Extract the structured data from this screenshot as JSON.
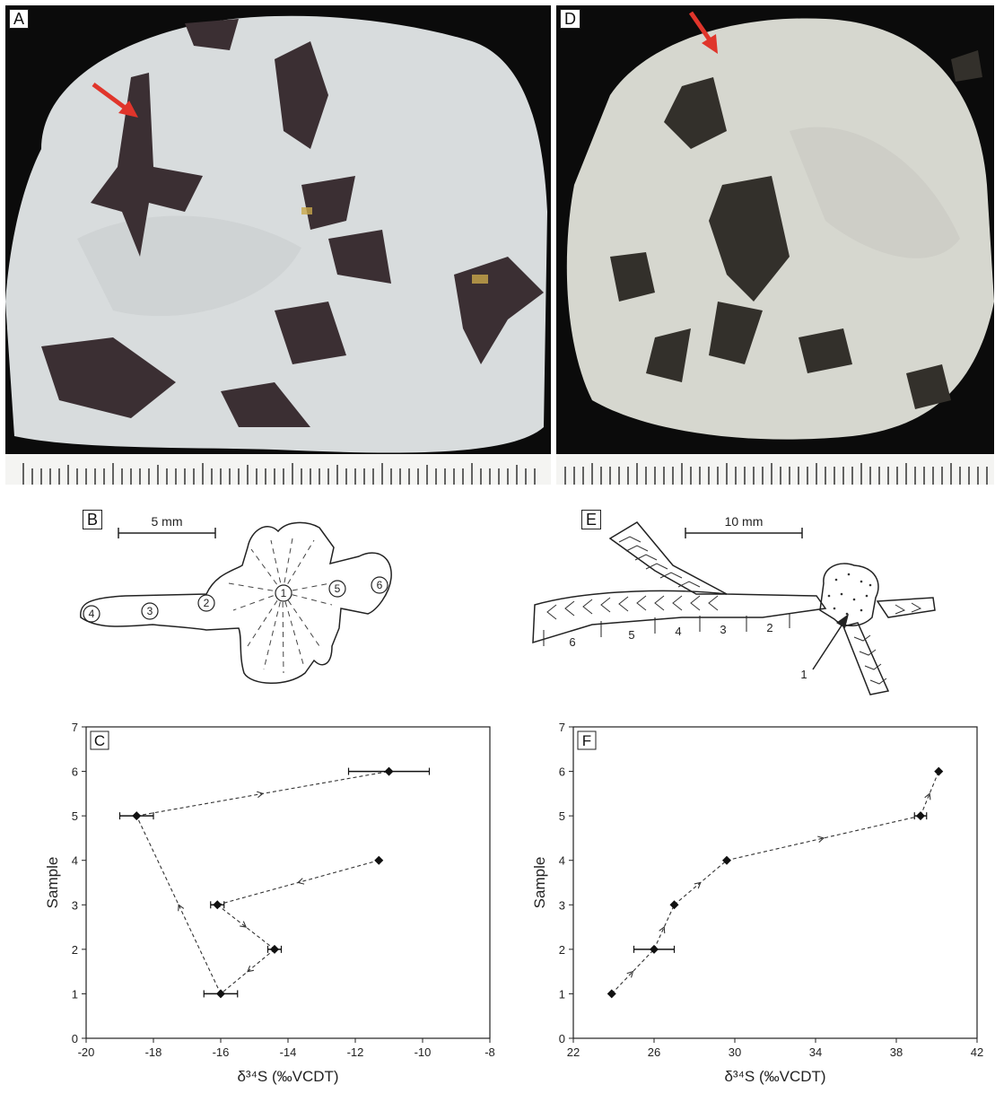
{
  "figure": {
    "panels": {
      "A": {
        "label": "A"
      },
      "D": {
        "label": "D"
      },
      "B": {
        "label": "B",
        "scale_label": "5 mm",
        "zone_labels": [
          "1",
          "2",
          "3",
          "4",
          "5",
          "6"
        ]
      },
      "E": {
        "label": "E",
        "scale_label": "10 mm",
        "zone_labels": [
          "1",
          "2",
          "3",
          "4",
          "5",
          "6"
        ]
      }
    },
    "colors": {
      "arrow": "#e0352b",
      "rock": "#d9dcdc",
      "crystal": "#3a3032",
      "background": "#0b0b0b"
    }
  },
  "chart_data": [
    {
      "panel_label": "C",
      "type": "scatter",
      "xlabel": "δ³⁴S (‰VCDT)",
      "ylabel": "Sample",
      "xlim": [
        -20,
        -8
      ],
      "ylim": [
        0,
        7
      ],
      "xticks": [
        -20,
        -18,
        -16,
        -14,
        -12,
        -10,
        -8
      ],
      "xtick_labels": [
        "-20",
        "-18",
        "-16",
        "-14",
        "-12",
        "-10",
        "-8"
      ],
      "yticks": [
        0,
        1,
        2,
        3,
        4,
        5,
        6,
        7
      ],
      "ytick_labels": [
        "0",
        "1",
        "2",
        "3",
        "4",
        "5",
        "6",
        "7"
      ],
      "points": [
        {
          "sample": 1,
          "x": -16.0,
          "err": 0.5
        },
        {
          "sample": 2,
          "x": -14.4,
          "err": 0.2
        },
        {
          "sample": 3,
          "x": -16.1,
          "err": 0.2
        },
        {
          "sample": 4,
          "x": -11.3,
          "err": 0
        },
        {
          "sample": 5,
          "x": -18.5,
          "err": 0.5
        },
        {
          "sample": 6,
          "x": -11.0,
          "err": 1.2
        }
      ],
      "path_order": [
        4,
        3,
        2,
        1,
        5,
        6
      ],
      "grid": false
    },
    {
      "panel_label": "F",
      "type": "scatter",
      "xlabel": "δ³⁴S (‰VCDT)",
      "ylabel": "Sample",
      "xlim": [
        22,
        42
      ],
      "ylim": [
        0,
        7
      ],
      "xticks": [
        22,
        26,
        30,
        34,
        38,
        42
      ],
      "xtick_labels": [
        "22",
        "26",
        "30",
        "34",
        "38",
        "42"
      ],
      "yticks": [
        0,
        1,
        2,
        3,
        4,
        5,
        6,
        7
      ],
      "ytick_labels": [
        "0",
        "1",
        "2",
        "3",
        "4",
        "5",
        "6",
        "7"
      ],
      "points": [
        {
          "sample": 1,
          "x": 23.9,
          "err": 0
        },
        {
          "sample": 2,
          "x": 26.0,
          "err": 1.0
        },
        {
          "sample": 3,
          "x": 27.0,
          "err": 0
        },
        {
          "sample": 4,
          "x": 29.6,
          "err": 0
        },
        {
          "sample": 5,
          "x": 39.2,
          "err": 0.3
        },
        {
          "sample": 6,
          "x": 40.1,
          "err": 0
        }
      ],
      "path_order": [
        1,
        2,
        3,
        4,
        5,
        6
      ],
      "grid": false
    }
  ]
}
